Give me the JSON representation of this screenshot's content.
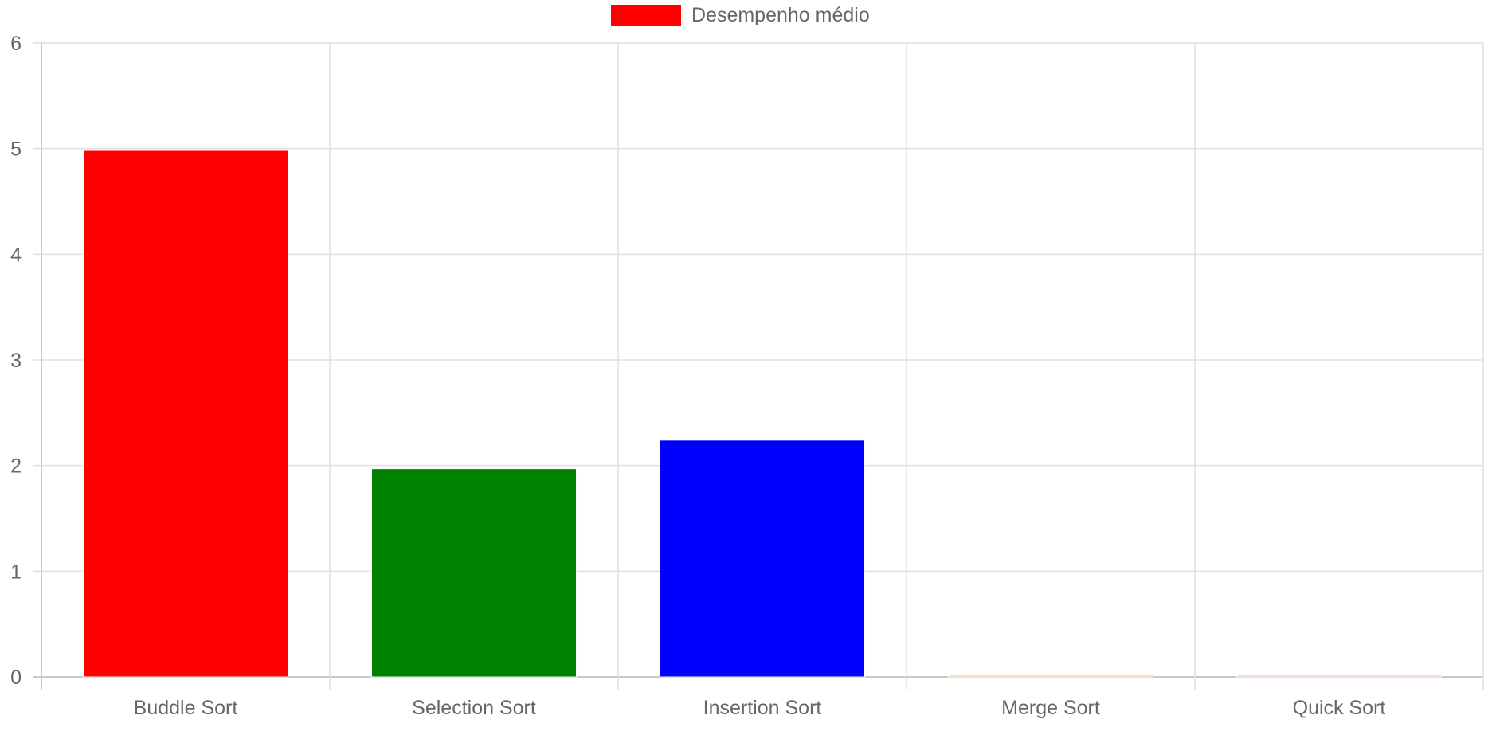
{
  "chart_data": {
    "type": "bar",
    "categories": [
      "Buddle Sort",
      "Selection Sort",
      "Insertion Sort",
      "Merge Sort",
      "Quick Sort"
    ],
    "series": [
      {
        "name": "Desempenho médio",
        "values": [
          4.99,
          1.97,
          2.24,
          0.015,
          0.008
        ],
        "colors": [
          "#ff0000",
          "#008000",
          "#0000ff",
          "#f4c08a",
          "#e5b5c8"
        ]
      }
    ],
    "legend": {
      "label": "Desempenho médio",
      "color": "#ff0000",
      "position": "top-center"
    },
    "ylim": [
      0,
      6
    ],
    "yticks": [
      "0",
      "1",
      "2",
      "3",
      "4",
      "5",
      "6"
    ],
    "grid": true,
    "gridColor": "#e0e0e0",
    "axisColor": "#c8c8c8",
    "textColor": "#666666"
  }
}
